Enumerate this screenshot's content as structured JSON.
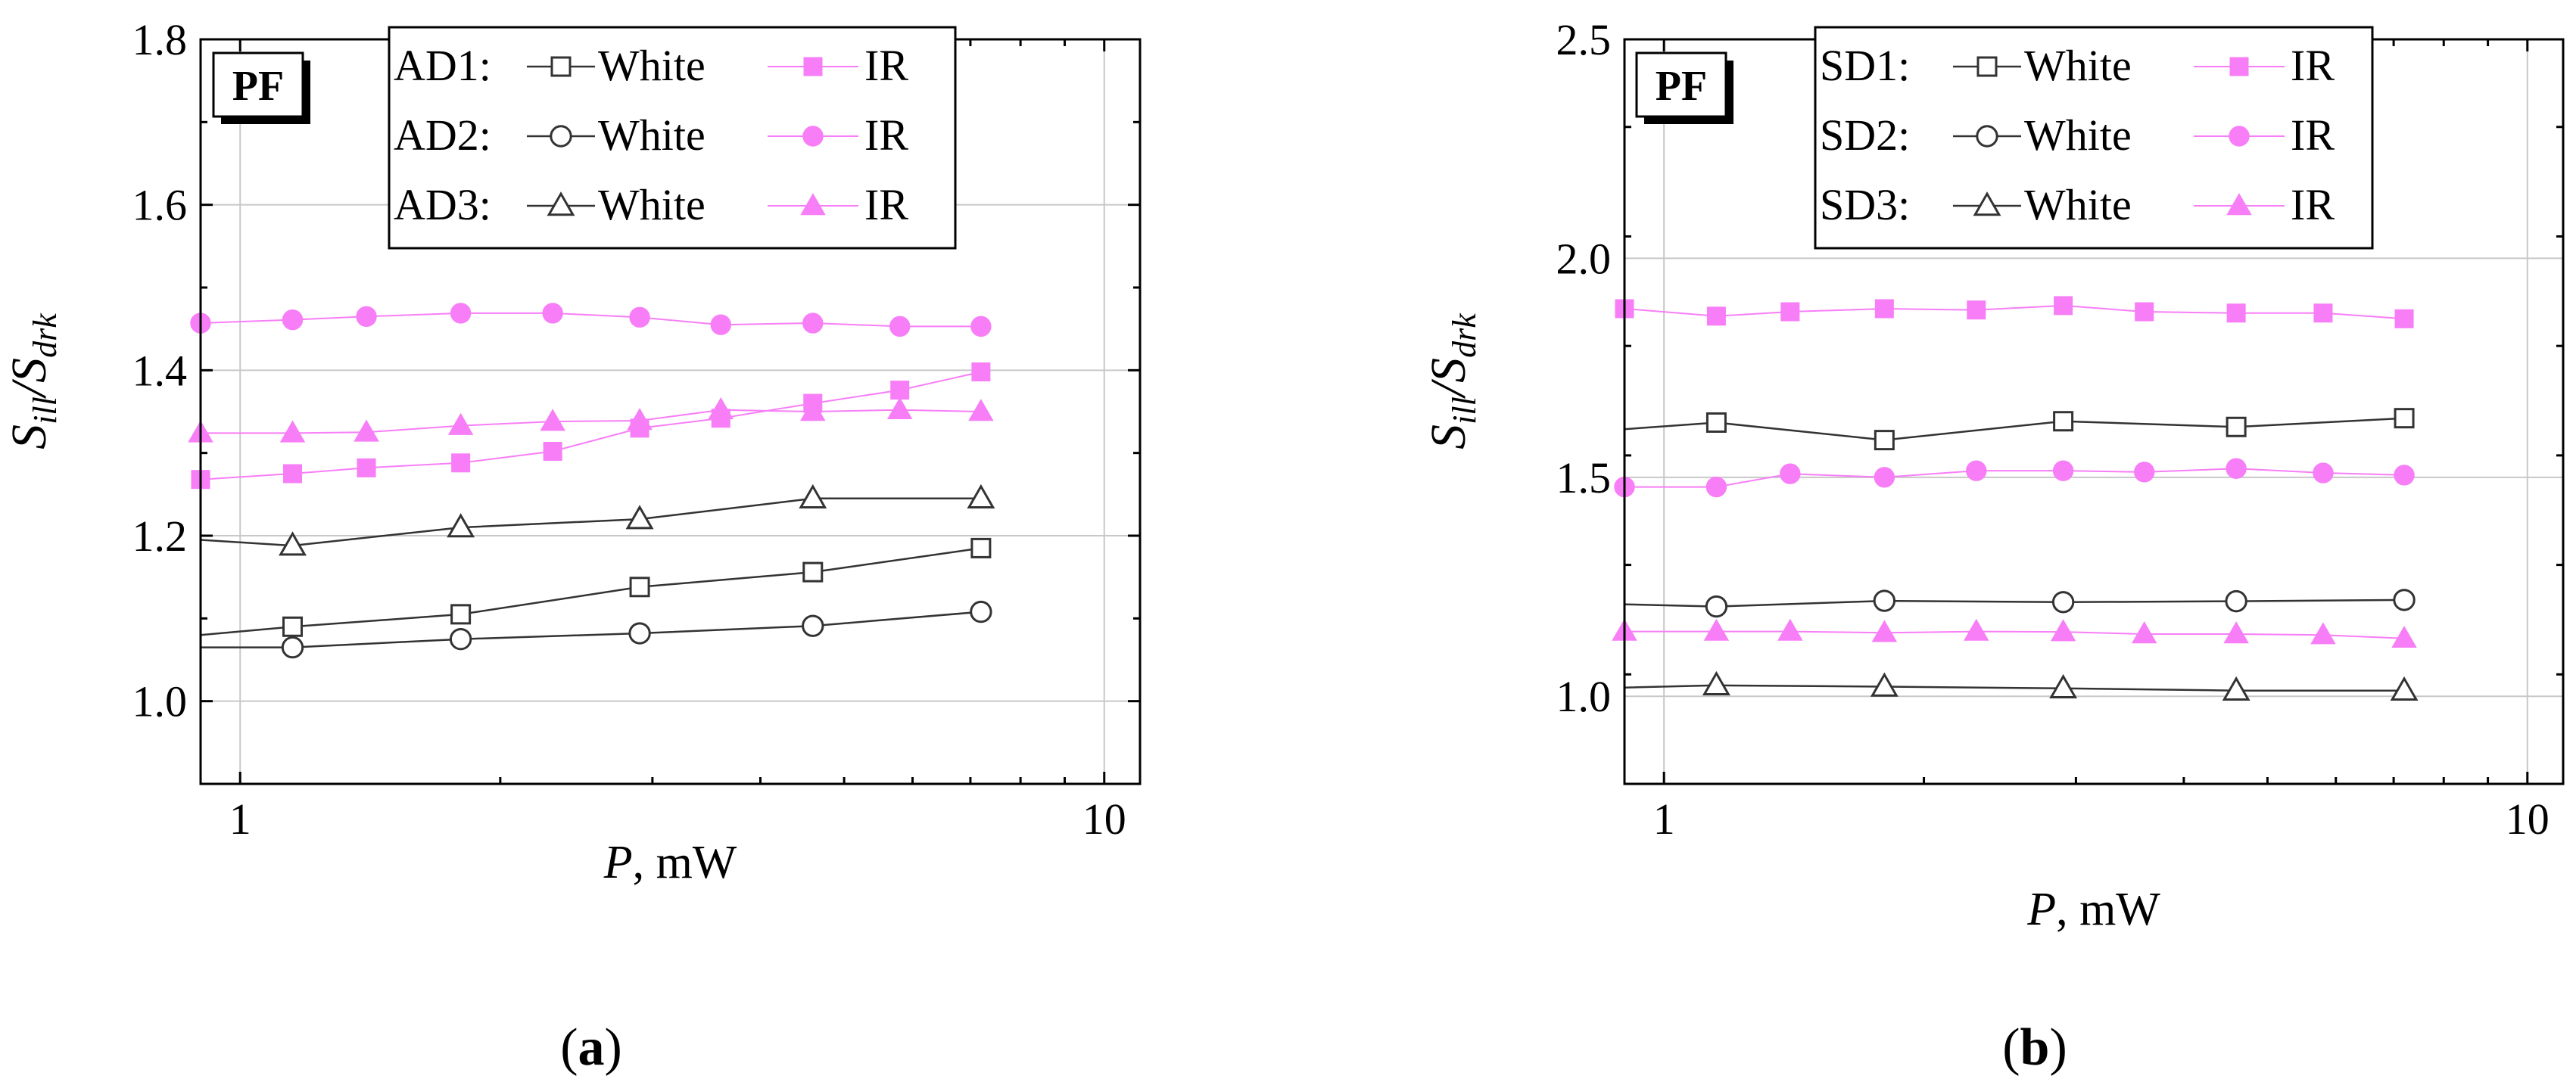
{
  "chart_data": [
    {
      "type": "line",
      "panel_label": "a",
      "badge": "PF",
      "xlabel": "P",
      "xlabel_unit": ", mW",
      "ylabel_main": "S",
      "ylabel_sub1": "ill",
      "ylabel_div": "/S",
      "ylabel_sub2": "drk",
      "xscale": "log",
      "xlim": [
        0.9,
        11
      ],
      "ylim": [
        0.9,
        1.8
      ],
      "yticks": [
        {
          "v": 1.0,
          "label": "1.0"
        },
        {
          "v": 1.2,
          "label": "1.2"
        },
        {
          "v": 1.4,
          "label": "1.4"
        },
        {
          "v": 1.6,
          "label": "1.6"
        },
        {
          "v": 1.8,
          "label": "1.8"
        }
      ],
      "xticks": [
        {
          "v": 1,
          "label": "1"
        },
        {
          "v": 10,
          "label": "10"
        }
      ],
      "grid": true,
      "legend_placement": "top-center",
      "legend_rows": [
        {
          "group": "AD1:",
          "white_label": "White",
          "ir_label": "IR",
          "marker": "square"
        },
        {
          "group": "AD2:",
          "white_label": "White",
          "ir_label": "IR",
          "marker": "circle"
        },
        {
          "group": "AD3:",
          "white_label": "White",
          "ir_label": "IR",
          "marker": "triangle"
        }
      ],
      "series": [
        {
          "name": "AD1: White",
          "color": "#333333",
          "marker": "square",
          "filled": false,
          "line_start": [
            0.9,
            1.08
          ],
          "points": [
            [
              1.15,
              1.09
            ],
            [
              1.8,
              1.105
            ],
            [
              2.9,
              1.138
            ],
            [
              4.6,
              1.156
            ],
            [
              7.2,
              1.185
            ]
          ]
        },
        {
          "name": "AD1: IR",
          "color": "#f77ef7",
          "marker": "square",
          "filled": true,
          "line_start": null,
          "points": [
            [
              0.9,
              1.268
            ],
            [
              1.15,
              1.275
            ],
            [
              1.4,
              1.282
            ],
            [
              1.8,
              1.288
            ],
            [
              2.3,
              1.302
            ],
            [
              2.9,
              1.33
            ],
            [
              3.6,
              1.342
            ],
            [
              4.6,
              1.36
            ],
            [
              5.8,
              1.376
            ],
            [
              7.2,
              1.398
            ]
          ]
        },
        {
          "name": "AD2: White",
          "color": "#333333",
          "marker": "circle",
          "filled": false,
          "line_start": [
            0.9,
            1.065
          ],
          "points": [
            [
              1.15,
              1.065
            ],
            [
              1.8,
              1.075
            ],
            [
              2.9,
              1.082
            ],
            [
              4.6,
              1.091
            ],
            [
              7.2,
              1.108
            ]
          ]
        },
        {
          "name": "AD2: IR",
          "color": "#f77ef7",
          "marker": "circle",
          "filled": true,
          "line_start": null,
          "points": [
            [
              0.9,
              1.457
            ],
            [
              1.15,
              1.461
            ],
            [
              1.4,
              1.465
            ],
            [
              1.8,
              1.469
            ],
            [
              2.3,
              1.469
            ],
            [
              2.9,
              1.464
            ],
            [
              3.6,
              1.455
            ],
            [
              4.6,
              1.457
            ],
            [
              5.8,
              1.453
            ],
            [
              7.2,
              1.453
            ]
          ]
        },
        {
          "name": "AD3: White",
          "color": "#333333",
          "marker": "triangle",
          "filled": false,
          "line_start": [
            0.9,
            1.195
          ],
          "points": [
            [
              1.15,
              1.188
            ],
            [
              1.8,
              1.21
            ],
            [
              2.9,
              1.22
            ],
            [
              4.6,
              1.245
            ],
            [
              7.2,
              1.245
            ]
          ]
        },
        {
          "name": "AD3: IR",
          "color": "#f77ef7",
          "marker": "triangle",
          "filled": true,
          "line_start": null,
          "points": [
            [
              0.9,
              1.324
            ],
            [
              1.15,
              1.324
            ],
            [
              1.4,
              1.325
            ],
            [
              1.8,
              1.333
            ],
            [
              2.3,
              1.338
            ],
            [
              2.9,
              1.339
            ],
            [
              3.6,
              1.352
            ],
            [
              4.6,
              1.35
            ],
            [
              5.8,
              1.352
            ],
            [
              7.2,
              1.35
            ]
          ]
        }
      ]
    },
    {
      "type": "line",
      "panel_label": "b",
      "badge": "PF",
      "xlabel": "P",
      "xlabel_unit": ", mW",
      "ylabel_main": "S",
      "ylabel_sub1": "ill",
      "ylabel_div": "/S",
      "ylabel_sub2": "drk",
      "xscale": "log",
      "xlim": [
        0.9,
        11
      ],
      "ylim": [
        0.8,
        2.5
      ],
      "yticks": [
        {
          "v": 1.0,
          "label": "1.0"
        },
        {
          "v": 1.5,
          "label": "1.5"
        },
        {
          "v": 2.0,
          "label": "2.0"
        },
        {
          "v": 2.5,
          "label": "2.5"
        }
      ],
      "xticks": [
        {
          "v": 1,
          "label": "1"
        },
        {
          "v": 10,
          "label": "10"
        }
      ],
      "grid": true,
      "legend_placement": "top-center",
      "legend_rows": [
        {
          "group": "SD1:",
          "white_label": "White",
          "ir_label": "IR",
          "marker": "square"
        },
        {
          "group": "SD2:",
          "white_label": "White",
          "ir_label": "IR",
          "marker": "circle"
        },
        {
          "group": "SD3:",
          "white_label": "White",
          "ir_label": "IR",
          "marker": "triangle"
        }
      ],
      "series": [
        {
          "name": "SD1: White",
          "color": "#333333",
          "marker": "square",
          "filled": false,
          "line_start": [
            0.9,
            1.61
          ],
          "points": [
            [
              1.15,
              1.625
            ],
            [
              1.8,
              1.585
            ],
            [
              2.9,
              1.628
            ],
            [
              4.6,
              1.615
            ],
            [
              7.2,
              1.635
            ]
          ]
        },
        {
          "name": "SD1: IR",
          "color": "#f77ef7",
          "marker": "square",
          "filled": true,
          "line_start": null,
          "points": [
            [
              0.9,
              1.885
            ],
            [
              1.15,
              1.868
            ],
            [
              1.4,
              1.878
            ],
            [
              1.8,
              1.885
            ],
            [
              2.3,
              1.882
            ],
            [
              2.9,
              1.892
            ],
            [
              3.6,
              1.878
            ],
            [
              4.6,
              1.875
            ],
            [
              5.8,
              1.875
            ],
            [
              7.2,
              1.862
            ]
          ]
        },
        {
          "name": "SD2: White",
          "color": "#333333",
          "marker": "circle",
          "filled": false,
          "line_start": [
            0.9,
            1.21
          ],
          "points": [
            [
              1.15,
              1.205
            ],
            [
              1.8,
              1.218
            ],
            [
              2.9,
              1.215
            ],
            [
              4.6,
              1.217
            ],
            [
              7.2,
              1.22
            ]
          ]
        },
        {
          "name": "SD2: IR",
          "color": "#f77ef7",
          "marker": "circle",
          "filled": true,
          "line_start": null,
          "points": [
            [
              0.9,
              1.478
            ],
            [
              1.15,
              1.478
            ],
            [
              1.4,
              1.508
            ],
            [
              1.8,
              1.5
            ],
            [
              2.3,
              1.515
            ],
            [
              2.9,
              1.515
            ],
            [
              3.6,
              1.512
            ],
            [
              4.6,
              1.52
            ],
            [
              5.8,
              1.51
            ],
            [
              7.2,
              1.505
            ]
          ]
        },
        {
          "name": "SD3: White",
          "color": "#333333",
          "marker": "triangle",
          "filled": false,
          "line_start": [
            0.9,
            1.02
          ],
          "points": [
            [
              1.15,
              1.025
            ],
            [
              1.8,
              1.022
            ],
            [
              2.9,
              1.018
            ],
            [
              4.6,
              1.013
            ],
            [
              7.2,
              1.013
            ]
          ]
        },
        {
          "name": "SD3: IR",
          "color": "#f77ef7",
          "marker": "triangle",
          "filled": true,
          "line_start": null,
          "points": [
            [
              0.9,
              1.148
            ],
            [
              1.15,
              1.148
            ],
            [
              1.4,
              1.148
            ],
            [
              1.8,
              1.145
            ],
            [
              2.3,
              1.148
            ],
            [
              2.9,
              1.147
            ],
            [
              3.6,
              1.142
            ],
            [
              4.6,
              1.142
            ],
            [
              5.8,
              1.14
            ],
            [
              7.2,
              1.132
            ]
          ]
        }
      ]
    }
  ]
}
